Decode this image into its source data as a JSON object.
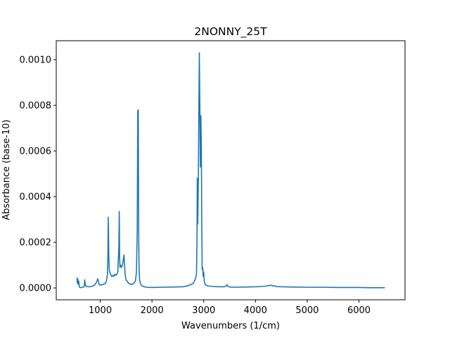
{
  "chart_data": {
    "type": "line",
    "title": "2NONNY_25T",
    "xlabel": "Wavenumbers (1/cm)",
    "ylabel": "Absorbance (base-10)",
    "xlim": [
      150,
      6890
    ],
    "ylim": [
      -5.2e-05,
      0.001083
    ],
    "xticks": [
      1000,
      2000,
      3000,
      4000,
      5000,
      6000
    ],
    "xtick_labels": [
      "1000",
      "2000",
      "3000",
      "4000",
      "5000",
      "6000"
    ],
    "yticks": [
      0.0,
      0.0002,
      0.0004,
      0.0006,
      0.0008,
      0.001
    ],
    "ytick_labels": [
      "0.0000",
      "0.0002",
      "0.0004",
      "0.0006",
      "0.0008",
      "0.0010"
    ],
    "grid": false,
    "legend": "none",
    "line_color": "#1f77b4",
    "series": [
      {
        "x": [
          550,
          560,
          565,
          575,
          585,
          595,
          605,
          620,
          660,
          690,
          700,
          715,
          725,
          740,
          800,
          880,
          930,
          950,
          965,
          980,
          1000,
          1050,
          1100,
          1120,
          1140,
          1148,
          1155,
          1165,
          1175,
          1185,
          1200,
          1220,
          1240,
          1260,
          1280,
          1300,
          1320,
          1340,
          1360,
          1368,
          1375,
          1382,
          1395,
          1410,
          1430,
          1450,
          1460,
          1465,
          1470,
          1480,
          1500,
          1550,
          1600,
          1650,
          1680,
          1700,
          1715,
          1725,
          1735,
          1740,
          1745,
          1750,
          1760,
          1775,
          1800,
          1850,
          1900,
          2000,
          2200,
          2400,
          2600,
          2700,
          2750,
          2800,
          2840,
          2860,
          2870,
          2875,
          2885,
          2895,
          2905,
          2915,
          2925,
          2935,
          2945,
          2955,
          2962,
          2970,
          2980,
          2990,
          3000,
          3010,
          3030,
          3060,
          3100,
          3200,
          3300,
          3400,
          3440,
          3450,
          3460,
          3500,
          3600,
          3800,
          4000,
          4100,
          4200,
          4250,
          4300,
          4330,
          4360,
          4400,
          4500,
          4700,
          5000,
          5300,
          5600,
          5800,
          6000,
          6200,
          6400,
          6500
        ],
        "y": [
          4.5e-05,
          2e-05,
          4e-05,
          1.5e-05,
          3e-05,
          5e-06,
          2e-06,
          1e-06,
          3e-06,
          5e-06,
          3.5e-05,
          1.2e-05,
          8e-06,
          6e-06,
          5e-06,
          1e-05,
          2.5e-05,
          4e-05,
          3e-05,
          1.5e-05,
          1.2e-05,
          1.5e-05,
          2e-05,
          3e-05,
          6e-05,
          0.00014,
          0.00031,
          0.00015,
          8e-05,
          7e-05,
          6e-05,
          5e-05,
          5.5e-05,
          5e-05,
          6e-05,
          5.5e-05,
          6e-05,
          7e-05,
          0.00018,
          0.000335,
          0.00013,
          9e-05,
          0.0001,
          9e-05,
          0.0001,
          0.00013,
          0.000145,
          0.00012,
          0.0001,
          6e-05,
          3.5e-05,
          2e-05,
          1.5e-05,
          2e-05,
          3e-05,
          7e-05,
          0.00025,
          0.000775,
          0.00078,
          0.00045,
          0.0002,
          9e-05,
          4e-05,
          2e-05,
          1e-05,
          5e-06,
          3e-06,
          2e-06,
          3e-06,
          4e-06,
          5e-06,
          1e-05,
          1.5e-05,
          2e-05,
          4e-05,
          6e-05,
          0.0002,
          0.00048,
          0.00028,
          0.00045,
          0.00075,
          0.00103,
          0.0008,
          0.00053,
          0.000755,
          0.0006,
          0.0003,
          8e-05,
          9e-05,
          5e-05,
          7e-05,
          3e-05,
          1.5e-05,
          1e-05,
          8e-06,
          6e-06,
          5e-06,
          5e-06,
          1e-05,
          1.5e-05,
          8e-06,
          4e-06,
          3e-06,
          4e-06,
          5e-06,
          6e-06,
          8e-06,
          1e-05,
          1.2e-05,
          8e-06,
          1e-05,
          6e-06,
          5e-06,
          4e-06,
          3e-06,
          3e-06,
          2e-06,
          2e-06,
          2e-06,
          1e-06,
          1e-06,
          1e-06
        ]
      }
    ]
  }
}
